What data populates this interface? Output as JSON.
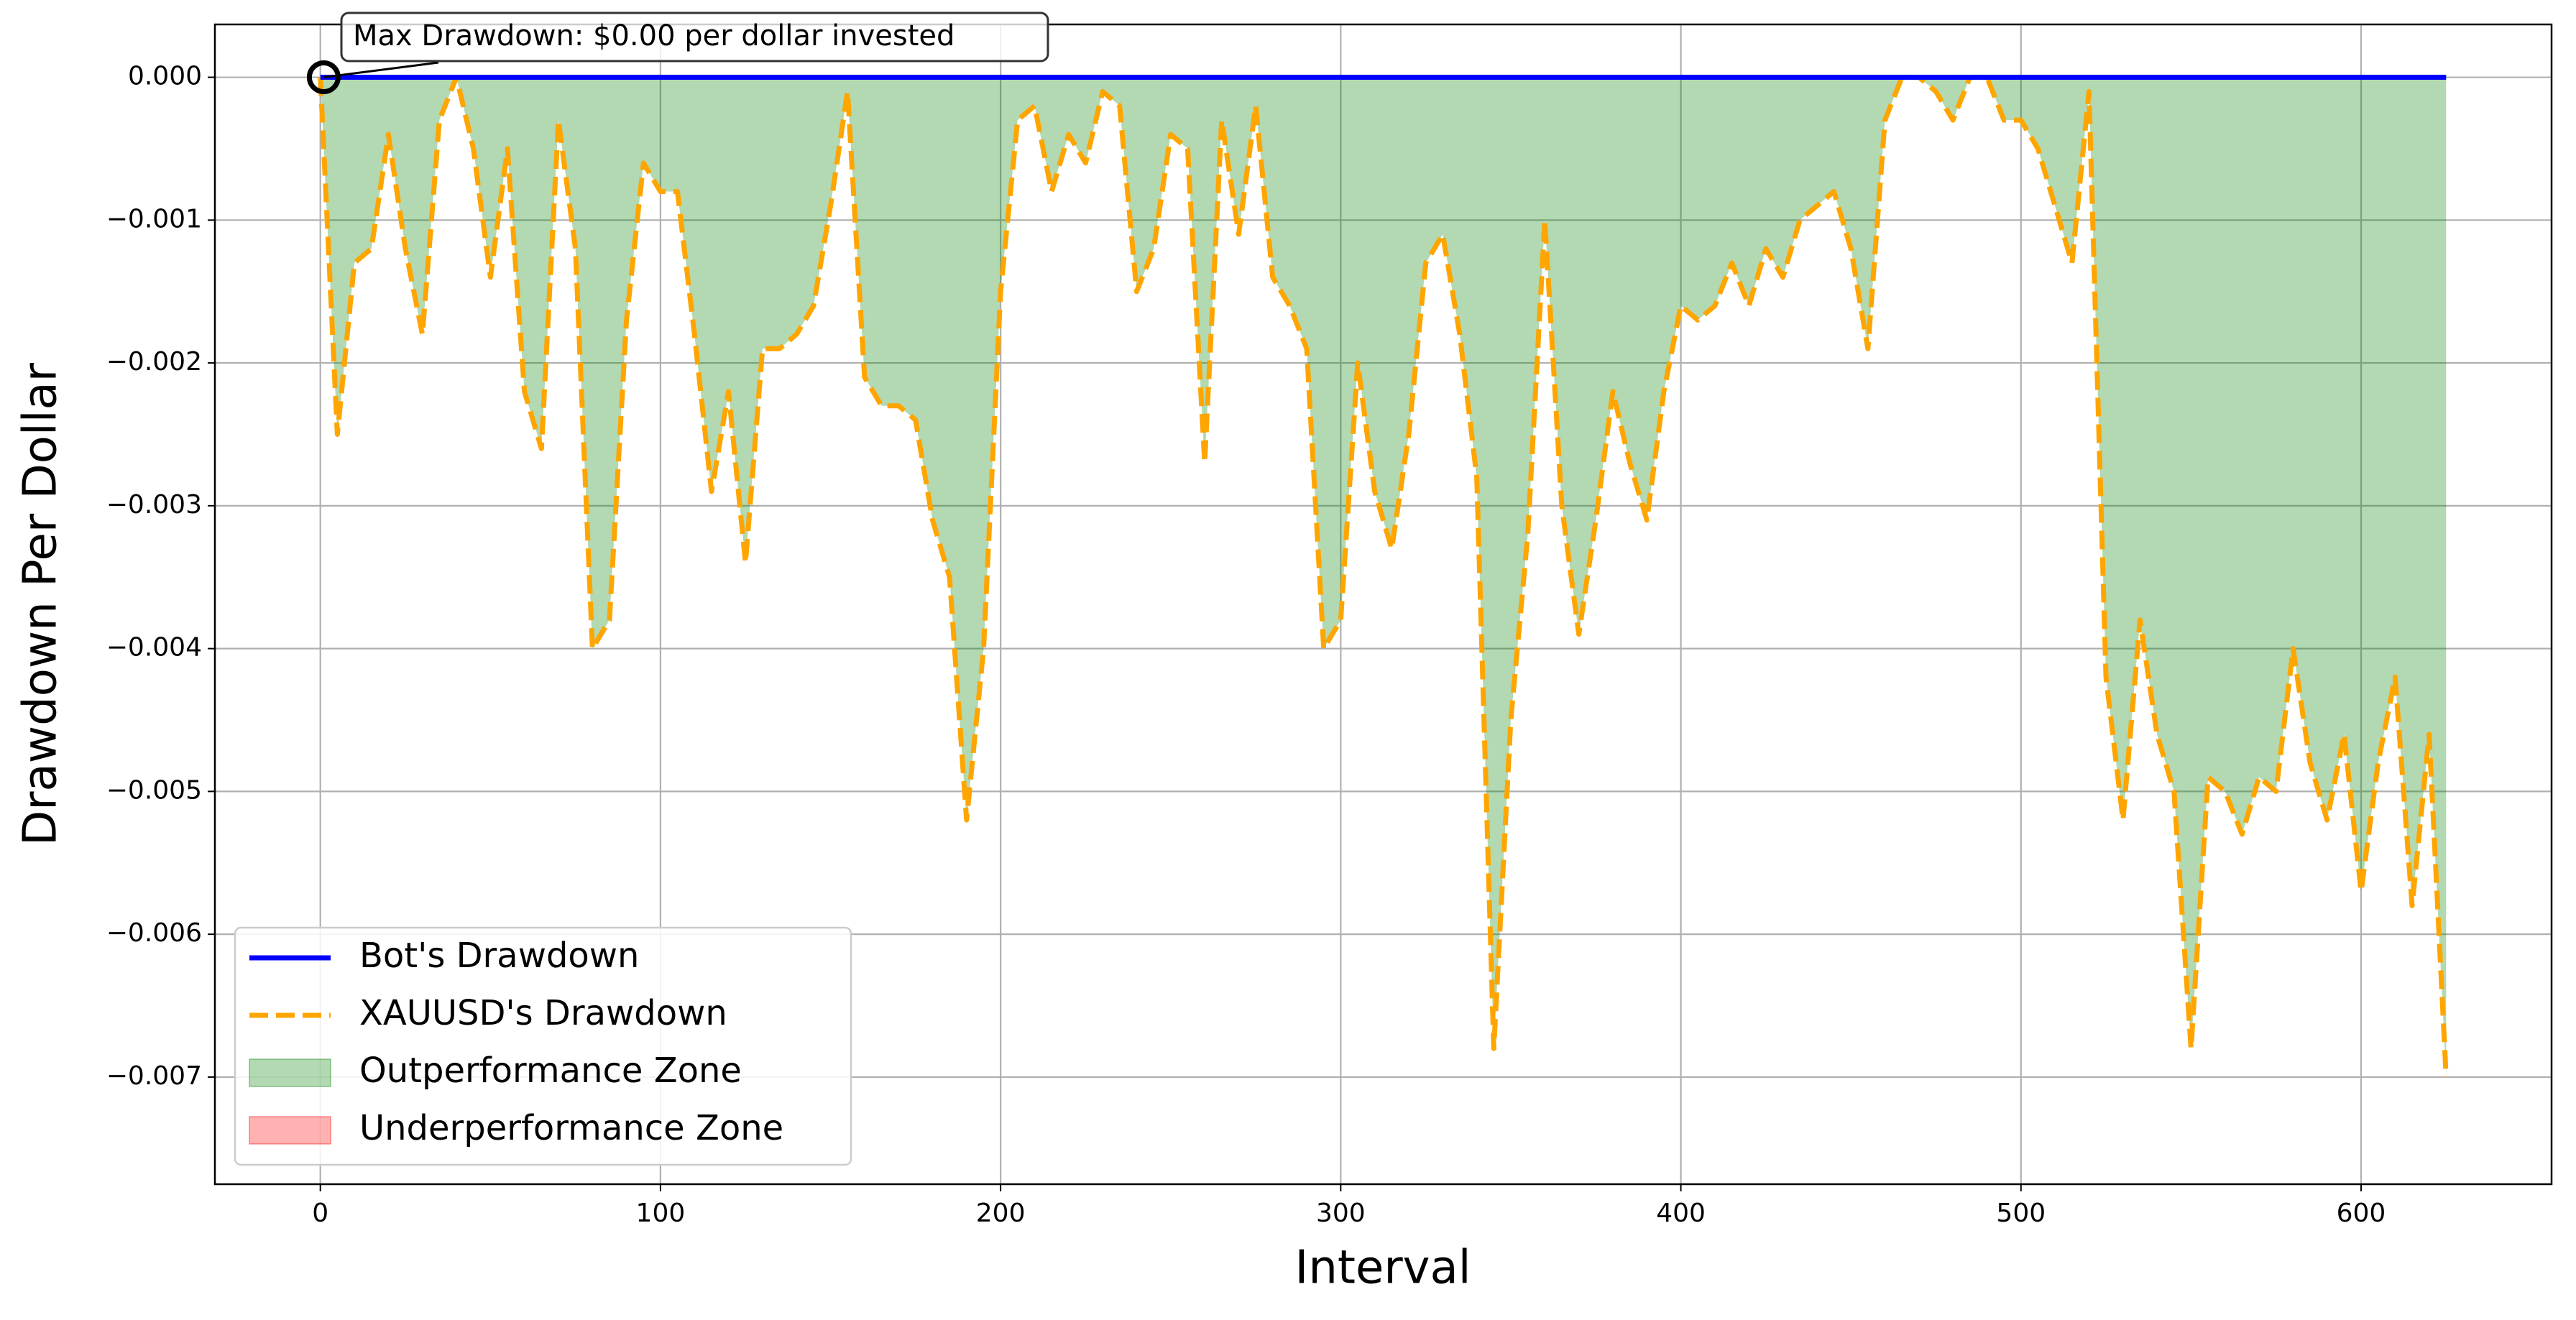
{
  "chart_data": {
    "type": "line",
    "xlabel": "Interval",
    "ylabel": "Drawdown Per Dollar",
    "x": [
      0,
      5,
      10,
      15,
      20,
      25,
      30,
      35,
      40,
      45,
      50,
      55,
      60,
      65,
      70,
      75,
      80,
      85,
      90,
      95,
      100,
      105,
      110,
      115,
      120,
      125,
      130,
      135,
      140,
      145,
      150,
      155,
      160,
      165,
      170,
      175,
      180,
      185,
      190,
      195,
      200,
      205,
      210,
      215,
      220,
      225,
      230,
      235,
      240,
      245,
      250,
      255,
      260,
      265,
      270,
      275,
      280,
      285,
      290,
      295,
      300,
      305,
      310,
      315,
      320,
      325,
      330,
      335,
      340,
      345,
      350,
      355,
      360,
      365,
      370,
      375,
      380,
      385,
      390,
      395,
      400,
      405,
      410,
      415,
      420,
      425,
      430,
      435,
      440,
      445,
      450,
      455,
      460,
      465,
      470,
      475,
      480,
      485,
      490,
      495,
      500,
      505,
      510,
      515,
      520,
      525,
      530,
      535,
      540,
      545,
      550,
      555,
      560,
      565,
      570,
      575,
      580,
      585,
      590,
      595,
      600,
      605,
      610,
      615,
      620,
      625
    ],
    "series": [
      {
        "name": "Bot's Drawdown",
        "color": "#0000ff",
        "dashed": false,
        "values": [
          0,
          0,
          0,
          0,
          0,
          0,
          0,
          0,
          0,
          0,
          0,
          0,
          0,
          0,
          0,
          0,
          0,
          0,
          0,
          0,
          0,
          0,
          0,
          0,
          0,
          0,
          0,
          0,
          0,
          0,
          0,
          0,
          0,
          0,
          0,
          0,
          0,
          0,
          0,
          0,
          0,
          0,
          0,
          0,
          0,
          0,
          0,
          0,
          0,
          0,
          0,
          0,
          0,
          0,
          0,
          0,
          0,
          0,
          0,
          0,
          0,
          0,
          0,
          0,
          0,
          0,
          0,
          0,
          0,
          0,
          0,
          0,
          0,
          0,
          0,
          0,
          0,
          0,
          0,
          0,
          0,
          0,
          0,
          0,
          0,
          0,
          0,
          0,
          0,
          0,
          0,
          0,
          0,
          0,
          0,
          0,
          0,
          0,
          0,
          0,
          0,
          0,
          0,
          0,
          0,
          0,
          0,
          0,
          0,
          0,
          0,
          0,
          0,
          0,
          0,
          0,
          0,
          0,
          0,
          0,
          0,
          0,
          0,
          0,
          0,
          0
        ]
      },
      {
        "name": "XAUUSD's Drawdown",
        "color": "#ffa500",
        "dashed": true,
        "values": [
          0,
          -0.0025,
          -0.0013,
          -0.0012,
          -0.0004,
          -0.0012,
          -0.0018,
          -0.0003,
          0,
          -0.0005,
          -0.0014,
          -0.0005,
          -0.0022,
          -0.0026,
          -0.0003,
          -0.0012,
          -0.004,
          -0.0038,
          -0.0017,
          -0.0006,
          -0.0008,
          -0.0008,
          -0.0018,
          -0.0029,
          -0.0022,
          -0.0034,
          -0.0019,
          -0.0019,
          -0.0018,
          -0.0016,
          -0.0009,
          -0.0001,
          -0.0021,
          -0.0023,
          -0.0023,
          -0.0024,
          -0.0031,
          -0.0035,
          -0.0052,
          -0.004,
          -0.0015,
          -0.0003,
          -0.0002,
          -0.0008,
          -0.0004,
          -0.0006,
          -0.0001,
          -0.0002,
          -0.0015,
          -0.0012,
          -0.0004,
          -0.0005,
          -0.0027,
          -0.0003,
          -0.0011,
          -0.0002,
          -0.0014,
          -0.0016,
          -0.0019,
          -0.004,
          -0.0038,
          -0.002,
          -0.0029,
          -0.0033,
          -0.0025,
          -0.0013,
          -0.0011,
          -0.0018,
          -0.0028,
          -0.0068,
          -0.0045,
          -0.0032,
          -0.001,
          -0.003,
          -0.0039,
          -0.0031,
          -0.0022,
          -0.0027,
          -0.0031,
          -0.0022,
          -0.0016,
          -0.0017,
          -0.0016,
          -0.0013,
          -0.0016,
          -0.0012,
          -0.0014,
          -0.001,
          -0.0009,
          -0.0008,
          -0.0012,
          -0.0019,
          -0.0003,
          0,
          0,
          -0.0001,
          -0.0003,
          0,
          0,
          -0.0003,
          -0.0003,
          -0.0005,
          -0.0009,
          -0.0013,
          -0.0001,
          -0.0042,
          -0.0052,
          -0.0038,
          -0.0046,
          -0.005,
          -0.0068,
          -0.0049,
          -0.005,
          -0.0053,
          -0.0049,
          -0.005,
          -0.004,
          -0.0048,
          -0.0052,
          -0.0046,
          -0.0057,
          -0.0048,
          -0.0042,
          -0.0058,
          -0.0046,
          -0.007
        ]
      }
    ],
    "fills": [
      {
        "name": "Outperformance Zone",
        "color": "#008000"
      },
      {
        "name": "Underperformance Zone",
        "color": "#ff0000"
      }
    ],
    "annotation": {
      "text": "Max Drawdown: $0.00 per dollar invested",
      "x": 1,
      "y": 0
    },
    "xlim": [
      -31,
      656
    ],
    "ylim": [
      -0.00775,
      0.00037
    ],
    "xticks": [
      0,
      100,
      200,
      300,
      400,
      500,
      600
    ],
    "yticks": [
      {
        "value": 0,
        "label": "0.000"
      },
      {
        "value": -0.001,
        "label": "−0.001"
      },
      {
        "value": -0.002,
        "label": "−0.002"
      },
      {
        "value": -0.003,
        "label": "−0.003"
      },
      {
        "value": -0.004,
        "label": "−0.004"
      },
      {
        "value": -0.005,
        "label": "−0.005"
      },
      {
        "value": -0.006,
        "label": "−0.006"
      },
      {
        "value": -0.007,
        "label": "−0.007"
      }
    ],
    "grid": true,
    "legend": "lower left"
  }
}
